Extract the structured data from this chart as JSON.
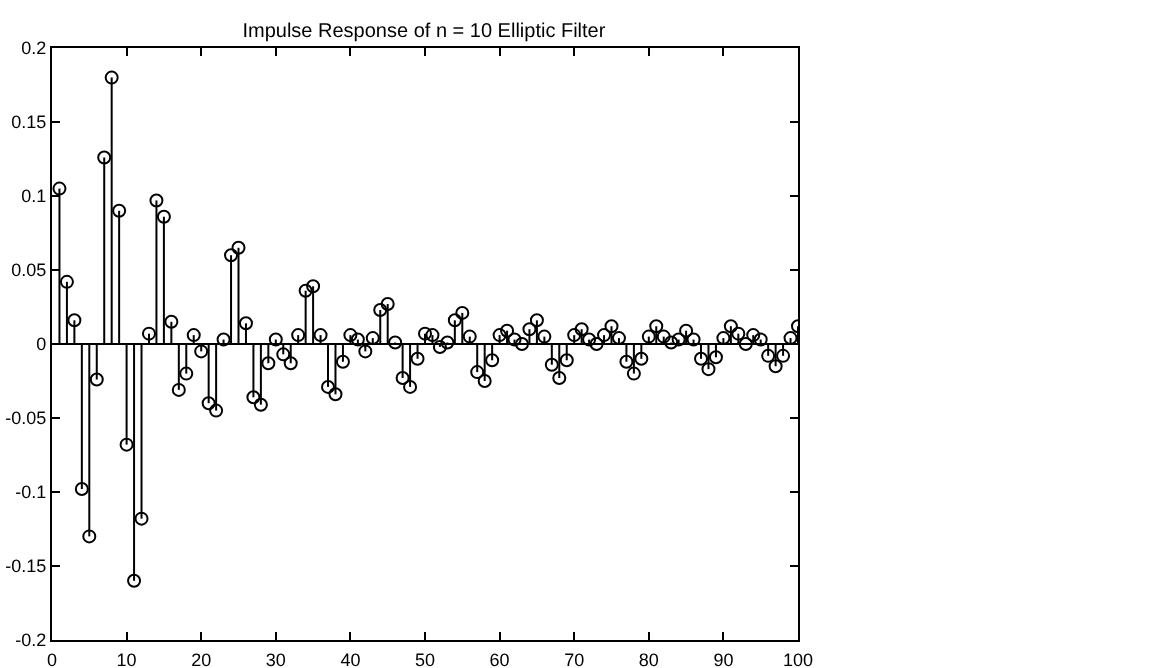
{
  "chart_data": {
    "type": "lollipop",
    "title": "Impulse Response of n = 10 Elliptic Filter",
    "x": [
      1,
      2,
      3,
      4,
      5,
      6,
      7,
      8,
      9,
      10,
      11,
      12,
      13,
      14,
      15,
      16,
      17,
      18,
      19,
      20,
      21,
      22,
      23,
      24,
      25,
      26,
      27,
      28,
      29,
      30,
      31,
      32,
      33,
      34,
      35,
      36,
      37,
      38,
      39,
      40,
      41,
      42,
      43,
      44,
      45,
      46,
      47,
      48,
      49,
      50,
      51,
      52,
      53,
      54,
      55,
      56,
      57,
      58,
      59,
      60,
      61,
      62,
      63,
      64,
      65,
      66,
      67,
      68,
      69,
      70,
      71,
      72,
      73,
      74,
      75,
      76,
      77,
      78,
      79,
      80,
      81,
      82,
      83,
      84,
      85,
      86,
      87,
      88,
      89,
      90,
      91,
      92,
      93,
      94,
      95,
      96,
      97,
      98,
      99,
      100
    ],
    "values": [
      0.105,
      0.042,
      0.016,
      -0.098,
      -0.13,
      -0.024,
      0.126,
      0.18,
      0.09,
      -0.068,
      -0.16,
      -0.118,
      0.007,
      0.097,
      0.086,
      0.015,
      -0.031,
      -0.02,
      0.006,
      -0.005,
      -0.04,
      -0.045,
      0.003,
      0.06,
      0.065,
      0.014,
      -0.036,
      -0.041,
      -0.013,
      0.003,
      -0.007,
      -0.013,
      0.006,
      0.036,
      0.039,
      0.006,
      -0.029,
      -0.034,
      -0.012,
      0.006,
      0.003,
      -0.005,
      0.004,
      0.023,
      0.027,
      0.001,
      -0.023,
      -0.029,
      -0.01,
      0.007,
      0.006,
      -0.002,
      0.001,
      0.016,
      0.021,
      0.005,
      -0.019,
      -0.025,
      -0.011,
      0.006,
      0.009,
      0.003,
      0,
      0.01,
      0.016,
      0.005,
      -0.014,
      -0.023,
      -0.011,
      0.006,
      0.01,
      0.003,
      0,
      0.006,
      0.012,
      0.004,
      -0.012,
      -0.02,
      -0.01,
      0.005,
      0.012,
      0.005,
      0.001,
      0.003,
      0.009,
      0.003,
      -0.01,
      -0.017,
      -0.009,
      0.004,
      0.012,
      0.007,
      0,
      0.006,
      0.003,
      -0.008,
      -0.015,
      -0.008,
      0.004,
      0.012
    ],
    "color": "#000000",
    "marker": "circle",
    "xlim": [
      0,
      100
    ],
    "xticks": [
      0,
      10,
      20,
      30,
      40,
      50,
      60,
      70,
      80,
      90,
      100
    ],
    "ylim": [
      -0.2,
      0.2
    ],
    "yticks": [
      -0.2,
      -0.15,
      -0.1,
      -0.05,
      0,
      0.05,
      0.1,
      0.15,
      0.2
    ],
    "ref_lines": [
      {
        "axis": "y",
        "value": 0,
        "color": "#000000"
      }
    ],
    "grid": false
  }
}
